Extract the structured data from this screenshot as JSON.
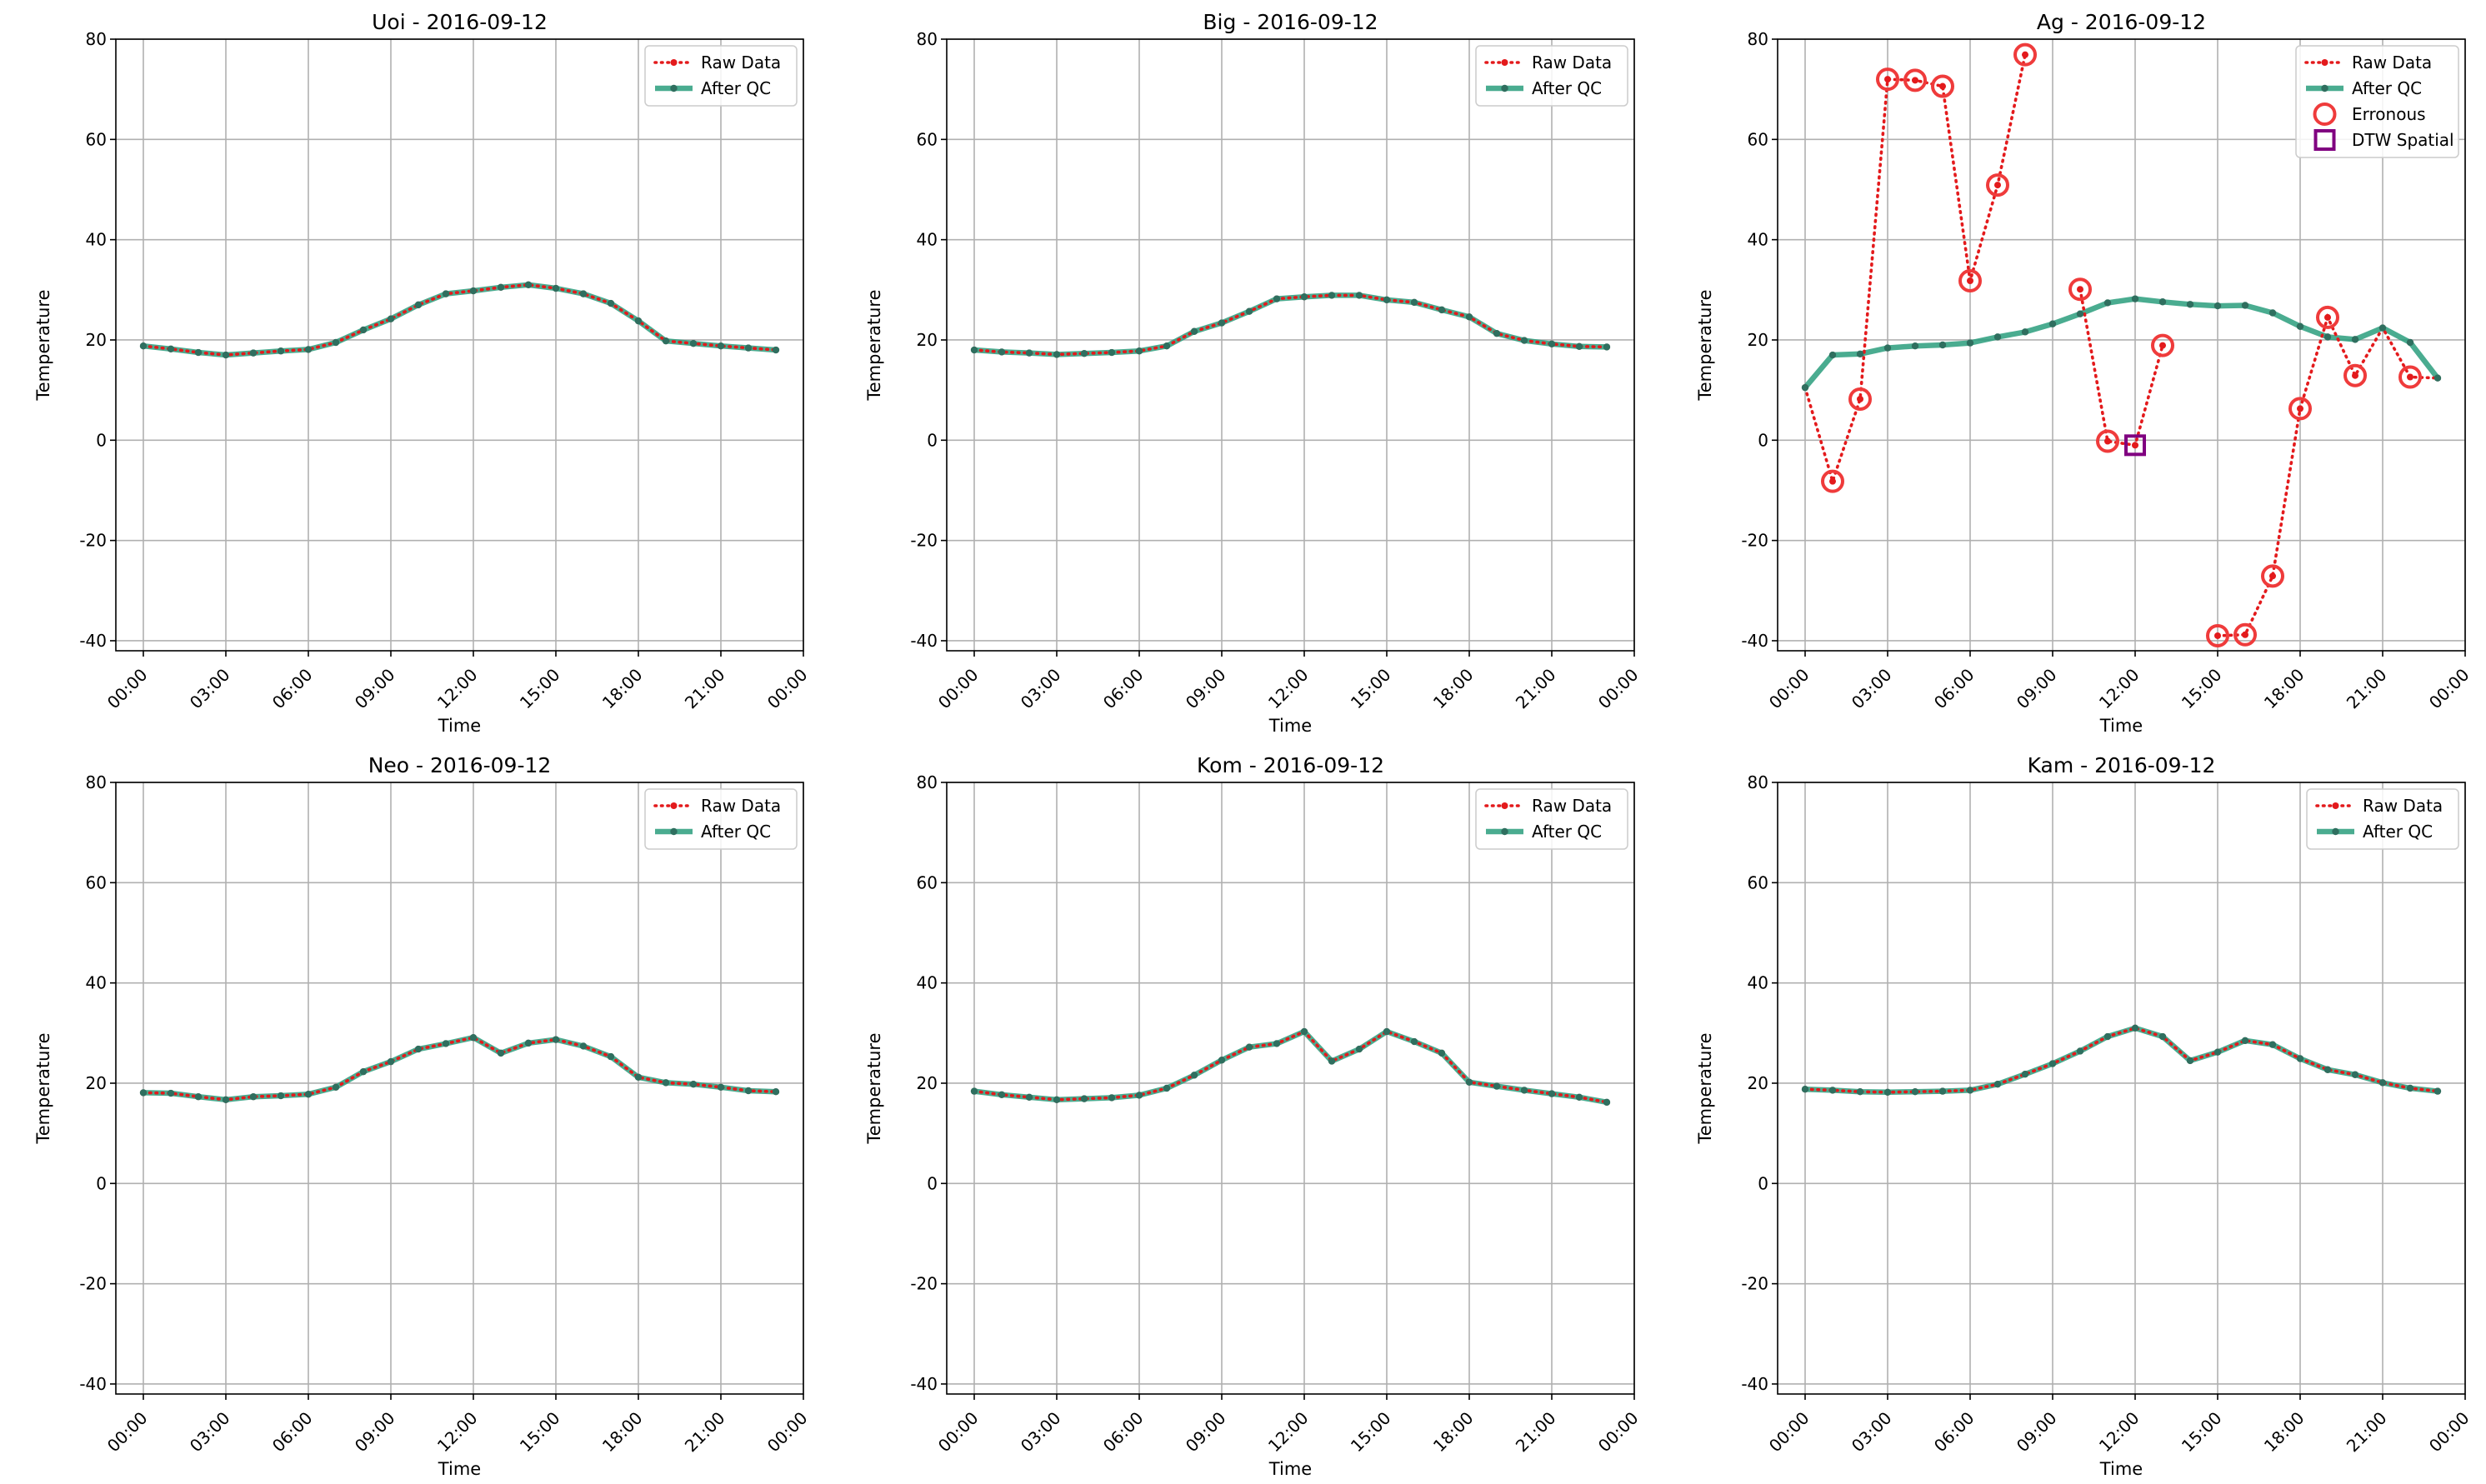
{
  "colors": {
    "raw": "#e31a1c",
    "qc": "#2a9d7c",
    "qc_marker": "#2f6f5f",
    "erroneous": "#ef3b3b",
    "dtw": "#800080",
    "grid": "#b0b0b0"
  },
  "chart_data": [
    {
      "type": "line",
      "title": "Uoi - 2016-09-12",
      "xlabel": "Time",
      "ylabel": "Temperature",
      "xlim": [
        -1.0,
        24.0
      ],
      "ylim": [
        -42,
        80
      ],
      "xticks": [
        "00:00",
        "03:00",
        "06:00",
        "09:00",
        "12:00",
        "15:00",
        "18:00",
        "21:00",
        "00:00"
      ],
      "yticks": [
        -40,
        -20,
        0,
        20,
        40,
        60,
        80
      ],
      "grid": true,
      "legend": {
        "placement": "top-right",
        "entries": [
          "Raw Data",
          "After QC"
        ]
      },
      "series": [
        {
          "name": "Raw Data",
          "x": [
            0,
            1,
            2,
            3,
            4,
            5,
            6,
            7,
            8,
            9,
            10,
            11,
            12,
            13,
            14,
            15,
            16,
            17,
            18,
            19,
            20,
            21,
            22,
            23
          ],
          "values": [
            18.8,
            18.2,
            17.5,
            17.0,
            17.4,
            17.8,
            18.1,
            19.5,
            22.0,
            24.2,
            27.0,
            29.2,
            29.8,
            30.5,
            31.0,
            30.3,
            29.2,
            27.3,
            23.8,
            19.8,
            19.3,
            18.8,
            18.4,
            18.0
          ]
        },
        {
          "name": "After QC",
          "x": [
            0,
            1,
            2,
            3,
            4,
            5,
            6,
            7,
            8,
            9,
            10,
            11,
            12,
            13,
            14,
            15,
            16,
            17,
            18,
            19,
            20,
            21,
            22,
            23
          ],
          "values": [
            18.8,
            18.2,
            17.5,
            17.0,
            17.4,
            17.8,
            18.1,
            19.5,
            22.0,
            24.2,
            27.0,
            29.2,
            29.8,
            30.5,
            31.0,
            30.3,
            29.2,
            27.3,
            23.8,
            19.8,
            19.3,
            18.8,
            18.4,
            18.0
          ]
        }
      ]
    },
    {
      "type": "line",
      "title": "Big - 2016-09-12",
      "xlabel": "Time",
      "ylabel": "Temperature",
      "xlim": [
        -1.0,
        24.0
      ],
      "ylim": [
        -42,
        80
      ],
      "xticks": [
        "00:00",
        "03:00",
        "06:00",
        "09:00",
        "12:00",
        "15:00",
        "18:00",
        "21:00",
        "00:00"
      ],
      "yticks": [
        -40,
        -20,
        0,
        20,
        40,
        60,
        80
      ],
      "grid": true,
      "legend": {
        "placement": "top-right",
        "entries": [
          "Raw Data",
          "After QC"
        ]
      },
      "series": [
        {
          "name": "Raw Data",
          "x": [
            0,
            1,
            2,
            3,
            4,
            5,
            6,
            7,
            8,
            9,
            10,
            11,
            12,
            13,
            14,
            15,
            16,
            17,
            18,
            19,
            20,
            21,
            22,
            23
          ],
          "values": [
            18.0,
            17.6,
            17.4,
            17.1,
            17.3,
            17.5,
            17.8,
            18.8,
            21.7,
            23.4,
            25.7,
            28.2,
            28.6,
            28.9,
            28.9,
            28.0,
            27.5,
            26.0,
            24.6,
            21.3,
            19.9,
            19.2,
            18.7,
            18.6
          ]
        },
        {
          "name": "After QC",
          "x": [
            0,
            1,
            2,
            3,
            4,
            5,
            6,
            7,
            8,
            9,
            10,
            11,
            12,
            13,
            14,
            15,
            16,
            17,
            18,
            19,
            20,
            21,
            22,
            23
          ],
          "values": [
            18.0,
            17.6,
            17.4,
            17.1,
            17.3,
            17.5,
            17.8,
            18.8,
            21.7,
            23.4,
            25.7,
            28.2,
            28.6,
            28.9,
            28.9,
            28.0,
            27.5,
            26.0,
            24.6,
            21.3,
            19.9,
            19.2,
            18.7,
            18.6
          ]
        }
      ]
    },
    {
      "type": "line",
      "title": "Ag - 2016-09-12",
      "xlabel": "Time",
      "ylabel": "Temperature",
      "xlim": [
        -1.0,
        24.0
      ],
      "ylim": [
        -42,
        80
      ],
      "xticks": [
        "00:00",
        "03:00",
        "06:00",
        "09:00",
        "12:00",
        "15:00",
        "18:00",
        "21:00",
        "00:00"
      ],
      "yticks": [
        -40,
        -20,
        0,
        20,
        40,
        60,
        80
      ],
      "grid": true,
      "legend": {
        "placement": "top-right",
        "entries": [
          "Raw Data",
          "After QC",
          "Erronous",
          "DTW Spatial"
        ]
      },
      "series": [
        {
          "name": "Raw Data",
          "x": [
            0,
            1,
            2,
            3,
            4,
            5,
            6,
            7,
            8,
            9,
            10,
            11,
            12,
            13,
            14,
            15,
            16,
            17,
            18,
            19,
            20,
            21,
            22,
            23
          ],
          "values": [
            10.5,
            -8.2,
            8.2,
            72.0,
            71.8,
            70.6,
            31.8,
            50.9,
            76.9,
            null,
            30.1,
            -0.2,
            -1.0,
            18.9,
            null,
            -39.0,
            -38.8,
            -27.1,
            6.3,
            24.5,
            12.9,
            22.4,
            12.6,
            12.4
          ]
        },
        {
          "name": "After QC",
          "x": [
            0,
            1,
            2,
            3,
            4,
            5,
            6,
            7,
            8,
            9,
            10,
            11,
            12,
            13,
            14,
            15,
            16,
            17,
            18,
            19,
            20,
            21,
            22,
            23
          ],
          "values": [
            10.5,
            17.0,
            17.2,
            18.4,
            18.8,
            19.0,
            19.4,
            20.6,
            21.6,
            23.2,
            25.2,
            27.4,
            28.2,
            27.6,
            27.1,
            26.8,
            26.9,
            25.4,
            22.7,
            20.6,
            20.1,
            22.4,
            19.5,
            12.4
          ]
        },
        {
          "name": "Erronous",
          "x": [
            1,
            2,
            3,
            4,
            5,
            6,
            7,
            8,
            10,
            11,
            13,
            15,
            16,
            17,
            18,
            19,
            20,
            22
          ],
          "values": [
            -8.2,
            8.2,
            72.0,
            71.8,
            70.6,
            31.8,
            50.9,
            76.9,
            30.1,
            -0.2,
            18.9,
            -39.0,
            -38.8,
            -27.1,
            6.3,
            24.5,
            12.9,
            12.6
          ]
        },
        {
          "name": "DTW Spatial",
          "x": [
            12
          ],
          "values": [
            -1.0
          ]
        }
      ]
    },
    {
      "type": "line",
      "title": "Neo - 2016-09-12",
      "xlabel": "Time",
      "ylabel": "Temperature",
      "xlim": [
        -1.0,
        24.0
      ],
      "ylim": [
        -42,
        80
      ],
      "xticks": [
        "00:00",
        "03:00",
        "06:00",
        "09:00",
        "12:00",
        "15:00",
        "18:00",
        "21:00",
        "00:00"
      ],
      "yticks": [
        -40,
        -20,
        0,
        20,
        40,
        60,
        80
      ],
      "grid": true,
      "legend": {
        "placement": "top-right",
        "entries": [
          "Raw Data",
          "After QC"
        ]
      },
      "series": [
        {
          "name": "Raw Data",
          "x": [
            0,
            1,
            2,
            3,
            4,
            5,
            6,
            7,
            8,
            9,
            10,
            11,
            12,
            13,
            14,
            15,
            16,
            17,
            18,
            19,
            20,
            21,
            22,
            23
          ],
          "values": [
            18.1,
            18.0,
            17.3,
            16.7,
            17.3,
            17.5,
            17.8,
            19.2,
            22.3,
            24.3,
            26.8,
            27.9,
            29.1,
            26.0,
            28.0,
            28.7,
            27.4,
            25.3,
            21.2,
            20.1,
            19.8,
            19.2,
            18.5,
            18.3
          ]
        },
        {
          "name": "After QC",
          "x": [
            0,
            1,
            2,
            3,
            4,
            5,
            6,
            7,
            8,
            9,
            10,
            11,
            12,
            13,
            14,
            15,
            16,
            17,
            18,
            19,
            20,
            21,
            22,
            23
          ],
          "values": [
            18.1,
            18.0,
            17.3,
            16.7,
            17.3,
            17.5,
            17.8,
            19.2,
            22.3,
            24.3,
            26.8,
            27.9,
            29.1,
            26.0,
            28.0,
            28.7,
            27.4,
            25.3,
            21.2,
            20.1,
            19.8,
            19.2,
            18.5,
            18.3
          ]
        }
      ]
    },
    {
      "type": "line",
      "title": "Kom - 2016-09-12",
      "xlabel": "Time",
      "ylabel": "Temperature",
      "xlim": [
        -1.0,
        24.0
      ],
      "ylim": [
        -42,
        80
      ],
      "xticks": [
        "00:00",
        "03:00",
        "06:00",
        "09:00",
        "12:00",
        "15:00",
        "18:00",
        "21:00",
        "00:00"
      ],
      "yticks": [
        -40,
        -20,
        0,
        20,
        40,
        60,
        80
      ],
      "grid": true,
      "legend": {
        "placement": "top-right",
        "entries": [
          "Raw Data",
          "After QC"
        ]
      },
      "series": [
        {
          "name": "Raw Data",
          "x": [
            0,
            1,
            2,
            3,
            4,
            5,
            6,
            7,
            8,
            9,
            10,
            11,
            12,
            13,
            14,
            15,
            16,
            17,
            18,
            19,
            20,
            21,
            22,
            23
          ],
          "values": [
            18.4,
            17.7,
            17.2,
            16.7,
            16.9,
            17.1,
            17.6,
            19.0,
            21.6,
            24.6,
            27.2,
            27.9,
            30.3,
            24.4,
            26.8,
            30.3,
            28.3,
            26.0,
            20.2,
            19.4,
            18.6,
            17.9,
            17.2,
            16.2
          ]
        },
        {
          "name": "After QC",
          "x": [
            0,
            1,
            2,
            3,
            4,
            5,
            6,
            7,
            8,
            9,
            10,
            11,
            12,
            13,
            14,
            15,
            16,
            17,
            18,
            19,
            20,
            21,
            22,
            23
          ],
          "values": [
            18.4,
            17.7,
            17.2,
            16.7,
            16.9,
            17.1,
            17.6,
            19.0,
            21.6,
            24.6,
            27.2,
            27.9,
            30.3,
            24.4,
            26.8,
            30.3,
            28.3,
            26.0,
            20.2,
            19.4,
            18.6,
            17.9,
            17.2,
            16.2
          ]
        }
      ]
    },
    {
      "type": "line",
      "title": "Kam - 2016-09-12",
      "xlabel": "Time",
      "ylabel": "Temperature",
      "xlim": [
        -1.0,
        24.0
      ],
      "ylim": [
        -42,
        80
      ],
      "xticks": [
        "00:00",
        "03:00",
        "06:00",
        "09:00",
        "12:00",
        "15:00",
        "18:00",
        "21:00",
        "00:00"
      ],
      "yticks": [
        -40,
        -20,
        0,
        20,
        40,
        60,
        80
      ],
      "grid": true,
      "legend": {
        "placement": "top-right",
        "entries": [
          "Raw Data",
          "After QC"
        ]
      },
      "series": [
        {
          "name": "Raw Data",
          "x": [
            0,
            1,
            2,
            3,
            4,
            5,
            6,
            7,
            8,
            9,
            10,
            11,
            12,
            13,
            14,
            15,
            16,
            17,
            18,
            19,
            20,
            21,
            22,
            23
          ],
          "values": [
            18.8,
            18.6,
            18.3,
            18.2,
            18.3,
            18.4,
            18.6,
            19.8,
            21.8,
            23.9,
            26.4,
            29.3,
            31.0,
            29.3,
            24.5,
            26.2,
            28.5,
            27.7,
            24.9,
            22.7,
            21.7,
            20.1,
            19.0,
            18.4
          ]
        },
        {
          "name": "After QC",
          "x": [
            0,
            1,
            2,
            3,
            4,
            5,
            6,
            7,
            8,
            9,
            10,
            11,
            12,
            13,
            14,
            15,
            16,
            17,
            18,
            19,
            20,
            21,
            22,
            23
          ],
          "values": [
            18.8,
            18.6,
            18.3,
            18.2,
            18.3,
            18.4,
            18.6,
            19.8,
            21.8,
            23.9,
            26.4,
            29.3,
            31.0,
            29.3,
            24.5,
            26.2,
            28.5,
            27.7,
            24.9,
            22.7,
            21.7,
            20.1,
            19.0,
            18.4
          ]
        }
      ]
    }
  ]
}
